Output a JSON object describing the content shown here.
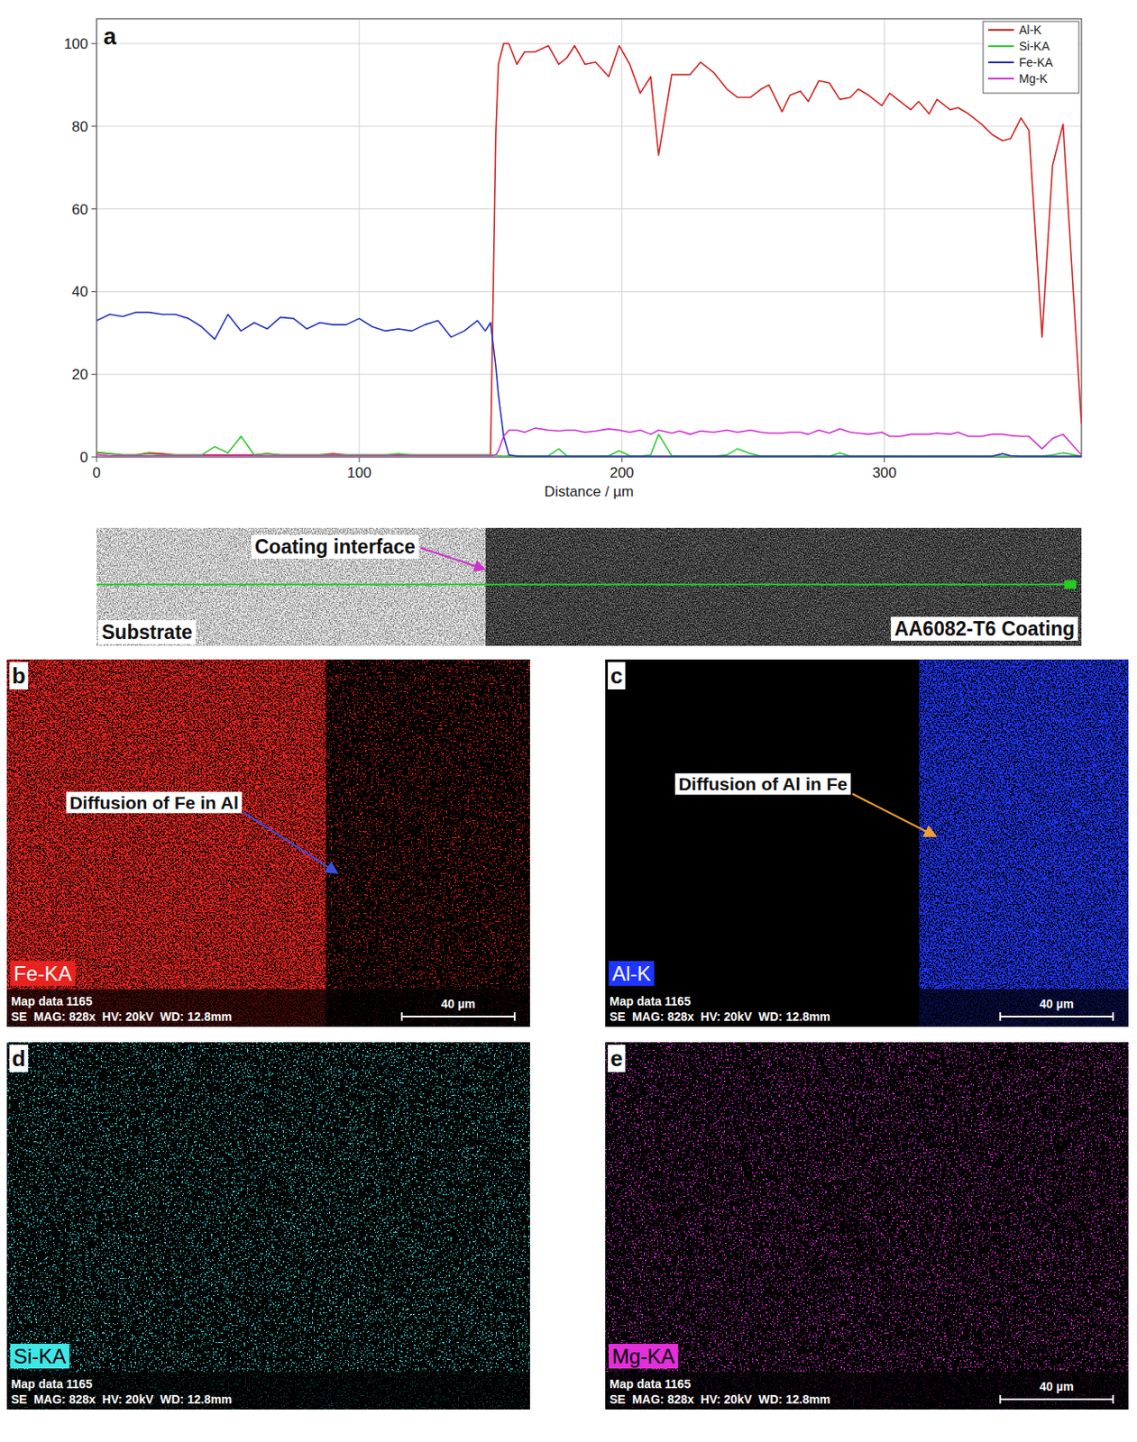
{
  "chart_label": "a",
  "chart_data": {
    "type": "line",
    "x_label": "Distance / µm",
    "x": [
      0,
      5,
      10,
      15,
      20,
      25,
      30,
      35,
      40,
      45,
      50,
      55,
      60,
      65,
      70,
      75,
      80,
      85,
      90,
      95,
      100,
      105,
      110,
      115,
      120,
      125,
      130,
      135,
      140,
      145,
      148,
      150,
      152,
      153,
      155,
      157,
      160,
      163,
      167,
      172,
      176,
      179,
      182,
      186,
      190,
      195,
      199,
      203,
      207,
      211,
      214,
      219,
      222,
      226,
      230,
      235,
      240,
      244,
      249,
      253,
      256,
      261,
      264,
      268,
      271,
      275,
      279,
      283,
      287,
      290,
      294,
      299,
      302,
      306,
      310,
      313,
      317,
      320,
      325,
      328,
      332,
      337,
      341,
      345,
      348,
      352,
      355,
      360,
      364,
      368,
      375
    ],
    "series": [
      {
        "name": "Al-K",
        "color": "#d42020",
        "values": [
          1,
          0.8,
          0.5,
          0.5,
          1,
          0.8,
          0.5,
          0.5,
          0.5,
          0.5,
          0.5,
          0.5,
          0.5,
          0.8,
          0.5,
          0.5,
          0.5,
          0.5,
          0.8,
          0.5,
          0.5,
          0.5,
          0.5,
          0.5,
          0.5,
          0.5,
          0.5,
          0.5,
          0.5,
          0.5,
          0.5,
          0.5,
          78,
          95,
          100,
          100,
          95,
          98,
          98,
          99.5,
          95,
          96.5,
          99.5,
          95,
          95.5,
          92,
          99.5,
          95,
          88,
          92,
          73,
          92.5,
          92.5,
          92.5,
          95.5,
          93,
          89,
          87,
          87,
          89,
          90,
          83.5,
          87.5,
          88.5,
          86,
          91,
          90.5,
          86.5,
          87,
          89,
          87.5,
          85,
          88,
          86,
          84,
          86,
          83,
          86.5,
          84,
          84.5,
          83,
          80.5,
          78,
          76.5,
          77,
          82,
          79,
          29,
          70.5,
          80.5,
          8
        ]
      },
      {
        "name": "Si-KA",
        "color": "#2ecc2e",
        "values": [
          1.2,
          0.8,
          0.5,
          0.5,
          0.8,
          0.5,
          0.5,
          0.5,
          0.5,
          2.5,
          1,
          5,
          0.5,
          0.8,
          0.5,
          0.5,
          0.5,
          0.5,
          0.5,
          0.5,
          0.5,
          0.5,
          0.5,
          0.8,
          0.5,
          0.5,
          0.5,
          0.5,
          0.5,
          0.5,
          0.5,
          0.5,
          0.5,
          0.3,
          0.2,
          0.3,
          0.3,
          0.2,
          0.2,
          0.3,
          2,
          0.3,
          0.2,
          0.2,
          0.2,
          0.3,
          1.5,
          0.3,
          0.2,
          0.5,
          5.5,
          0.3,
          0.2,
          0.2,
          0.2,
          0.2,
          0.5,
          2,
          0.8,
          0.2,
          0.2,
          0.2,
          0.2,
          0.2,
          0.2,
          0.3,
          0.2,
          1,
          0.2,
          0.2,
          0.2,
          0.2,
          0.2,
          0.2,
          0.2,
          0.2,
          0.2,
          0.2,
          0.2,
          0.2,
          0.2,
          0.2,
          0.2,
          0.2,
          0.2,
          0.2,
          0.2,
          0.2,
          0.5,
          1,
          0.2
        ]
      },
      {
        "name": "Fe-KA",
        "color": "#2030c0",
        "values": [
          33,
          34.5,
          34,
          35,
          35,
          34.5,
          34.5,
          33.5,
          31.5,
          28.5,
          34.5,
          30.5,
          32.5,
          31,
          33.8,
          33.5,
          31,
          32.5,
          32,
          32,
          33.5,
          31.5,
          30.5,
          31,
          30.5,
          32,
          33,
          29,
          30.5,
          33,
          30.5,
          32.5,
          22,
          15,
          5,
          0.5,
          0.2,
          0.2,
          0.2,
          0.2,
          0.2,
          0.2,
          0.2,
          0.2,
          0.2,
          0.2,
          0.2,
          0.2,
          0.2,
          0.2,
          0.2,
          0.2,
          0.2,
          0.2,
          0.2,
          0.2,
          0.2,
          0.2,
          0.2,
          0.2,
          0.2,
          0.2,
          0.2,
          0.2,
          0.2,
          0.2,
          0.2,
          0.2,
          0.2,
          0.2,
          0.2,
          0.2,
          0.2,
          0.2,
          0.2,
          0.2,
          0.2,
          0.2,
          0.2,
          0.2,
          0.2,
          0.2,
          0.2,
          0.8,
          0.3,
          0.2,
          0.2,
          0.2,
          0.2,
          0.2,
          0.2
        ]
      },
      {
        "name": "Mg-K",
        "color": "#d030d0",
        "values": [
          0.5,
          0.3,
          0.3,
          0.3,
          0.3,
          0.3,
          0.3,
          0.3,
          0.3,
          0.3,
          0.3,
          0.3,
          0.3,
          0.3,
          0.3,
          0.3,
          0.3,
          0.3,
          0.3,
          0.3,
          0.3,
          0.3,
          0.3,
          0.3,
          0.3,
          0.3,
          0.3,
          0.3,
          0.3,
          0.3,
          0.3,
          0.3,
          0.5,
          1.5,
          5,
          6.5,
          6.5,
          6,
          7,
          6.5,
          6.3,
          6.5,
          6.5,
          6,
          6.3,
          6.8,
          6.5,
          6,
          6.5,
          5.5,
          6.5,
          5.8,
          6.3,
          5.5,
          6.3,
          6,
          6.5,
          6,
          6.5,
          6,
          5.8,
          5.8,
          6,
          6,
          5.5,
          6.5,
          5.8,
          6.8,
          6,
          5.8,
          5.5,
          6,
          5,
          5,
          5.5,
          5.5,
          5.5,
          5.8,
          5.5,
          6,
          5,
          5,
          5.5,
          5.5,
          5.2,
          5,
          5,
          2,
          4.5,
          5.5,
          0.5
        ]
      }
    ],
    "xlim": [
      0,
      375
    ],
    "ylim": [
      0,
      106
    ],
    "xticks": [
      0,
      100,
      200,
      300
    ],
    "yticks": [
      0,
      20,
      40,
      60,
      80,
      100
    ],
    "grid": true,
    "legend": "top-right"
  },
  "sem_strip": {
    "interface_label": "Coating interface",
    "substrate_label": "Substrate",
    "coating_label": "AA6082-T6 Coating"
  },
  "maps": [
    {
      "label": "b",
      "element": "Fe-KA",
      "color": "#e8231f",
      "annotation": "Diffusion of Fe in Al",
      "map_data": "Map data 1165",
      "meta": "SE  MAG: 828x  HV: 20kV  WD: 12.8mm",
      "scale_bar": "40 µm"
    },
    {
      "label": "c",
      "element": "Al-K",
      "color": "#1f35ff",
      "annotation": "Diffusion of Al in Fe",
      "map_data": "Map data 1165",
      "meta": "SE  MAG: 828x  HV: 20kV  WD: 12.8mm",
      "scale_bar": "40 µm"
    },
    {
      "label": "d",
      "element": "Si-KA",
      "color": "#3ee6e6",
      "map_data": "Map data 1165",
      "meta": "SE  MAG: 828x  HV: 20kV  WD: 12.8mm"
    },
    {
      "label": "e",
      "element": "Mg-KA",
      "color": "#e22fd8",
      "map_data": "Map data 1165",
      "meta": "SE  MAG: 828x  HV: 20kV  WD: 12.8mm",
      "scale_bar": "40 µm"
    }
  ]
}
